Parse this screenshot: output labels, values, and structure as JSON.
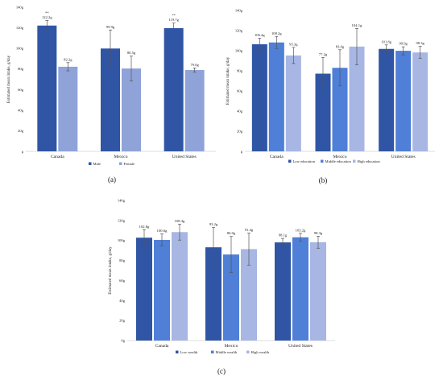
{
  "chart_data": [
    {
      "type": "bar",
      "panel_label": "(a)",
      "categories": [
        "Canada",
        "Mexico",
        "United States"
      ],
      "ylabel": "Estimated mean intake, g/day",
      "ylim": [
        0,
        140
      ],
      "yticks": [
        "g",
        "20g",
        "40g",
        "60g",
        "80g",
        "100g",
        "120g",
        "140g"
      ],
      "legend_position": "bottom",
      "series": [
        {
          "name": "Male",
          "color": "#2f55a4",
          "values": [
            122.2,
            99.9,
            119.7
          ],
          "labels": [
            "122.2g",
            "99.9g",
            "119.7g"
          ],
          "err": [
            5,
            18,
            5
          ],
          "sig": [
            "**",
            "",
            "**"
          ]
        },
        {
          "name": "Female",
          "color": "#8fa3d9",
          "values": [
            82.2,
            80.5,
            79.0
          ],
          "labels": [
            "82.2g",
            "80.5g",
            "79.0g"
          ],
          "err": [
            4,
            12,
            2
          ],
          "sig": [
            "",
            "",
            ""
          ]
        }
      ]
    },
    {
      "type": "bar",
      "panel_label": "(b)",
      "categories": [
        "Canada",
        "Mexico",
        "United States"
      ],
      "ylabel": "Estimated mean intake, g/day",
      "ylim": [
        0,
        140
      ],
      "yticks": [
        "g",
        "20g",
        "40g",
        "60g",
        "80g",
        "100g",
        "120g",
        "140g"
      ],
      "legend_position": "bottom",
      "series": [
        {
          "name": "Low education",
          "color": "#2f55a4",
          "values": [
            106.4,
            77.2,
            101.8
          ],
          "labels": [
            "106.4g",
            "77.2g",
            "101.8g"
          ],
          "err": [
            6,
            16,
            4
          ],
          "sig": [
            "",
            "",
            ""
          ]
        },
        {
          "name": "Middle education",
          "color": "#4f7fd6",
          "values": [
            108.2,
            83.0,
            99.9
          ],
          "labels": [
            "108.2g",
            "83.0g",
            "99.9g"
          ],
          "err": [
            6,
            18,
            4
          ],
          "sig": [
            "",
            "",
            ""
          ]
        },
        {
          "name": "High education",
          "color": "#a8b6e3",
          "values": [
            95.3,
            104.1,
            98.3
          ],
          "labels": [
            "95.3g",
            "104.1g",
            "98.3g"
          ],
          "err": [
            8,
            18,
            6
          ],
          "sig": [
            "",
            "",
            ""
          ]
        }
      ]
    },
    {
      "type": "bar",
      "panel_label": "(c)",
      "categories": [
        "Canada",
        "Mexico",
        "United States"
      ],
      "ylabel": "Estimated mean intake, g/day",
      "ylim": [
        0,
        140
      ],
      "yticks": [
        "0g",
        "20g",
        "40g",
        "60g",
        "80g",
        "100g",
        "120g",
        "140g"
      ],
      "legend_position": "bottom",
      "series": [
        {
          "name": "Low wealth",
          "color": "#2f55a4",
          "values": [
            102.8,
            93.2,
            98.1
          ],
          "labels": [
            "102.8g",
            "93.2g",
            "98.1g"
          ],
          "err": [
            8,
            20,
            4
          ],
          "sig": [
            "",
            "",
            ""
          ]
        },
        {
          "name": "Middle wealth",
          "color": "#4f7fd6",
          "values": [
            100.6,
            86.0,
            103.2
          ],
          "labels": [
            "100.6g",
            "86.0g",
            "103.2g"
          ],
          "err": [
            6,
            18,
            4
          ],
          "sig": [
            "",
            "",
            ""
          ]
        },
        {
          "name": "High wealth",
          "color": "#a8b6e3",
          "values": [
            108.4,
            91.4,
            98.3
          ],
          "labels": [
            "108.4g",
            "91.4g",
            "98.3g"
          ],
          "err": [
            8,
            16,
            6
          ],
          "sig": [
            "",
            "",
            ""
          ]
        }
      ]
    }
  ]
}
